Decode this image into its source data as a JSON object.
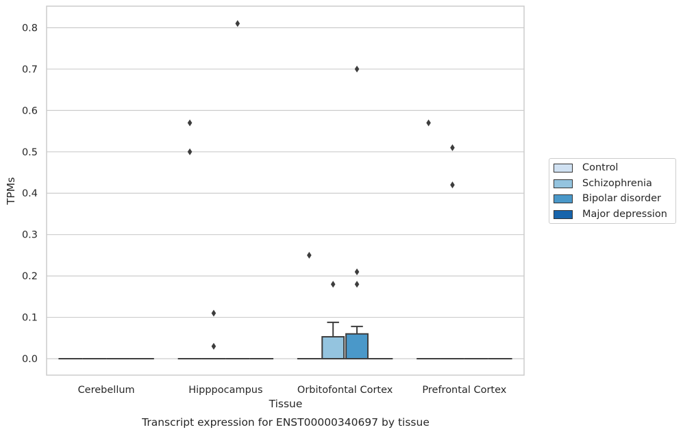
{
  "chart_data": {
    "type": "box",
    "title": "Transcript expression for ENST00000340697 by tissue",
    "xlabel": "Tissue",
    "ylabel": "TPMs",
    "ylim": [
      -0.04,
      0.853
    ],
    "yticks": [
      0.0,
      0.1,
      0.2,
      0.3,
      0.4,
      0.5,
      0.6,
      0.7,
      0.8
    ],
    "ytick_labels": [
      "0.0",
      "0.1",
      "0.2",
      "0.3",
      "0.4",
      "0.5",
      "0.6",
      "0.7",
      "0.8"
    ],
    "categories": [
      "Cerebellum",
      "Hipppocampus",
      "Orbitofontal Cortex",
      "Prefrontal Cortex"
    ],
    "grid": "horizontal",
    "legend_position": "right",
    "series": [
      {
        "name": "Control",
        "color": "#d0e1f2",
        "boxes": [
          {
            "q1": 0,
            "median": 0,
            "q3": 0,
            "whislo": 0,
            "whishi": 0,
            "fliers": []
          },
          {
            "q1": 0,
            "median": 0,
            "q3": 0,
            "whislo": 0,
            "whishi": 0,
            "fliers": [
              0.57,
              0.5
            ]
          },
          {
            "q1": 0,
            "median": 0,
            "q3": 0,
            "whislo": 0,
            "whishi": 0,
            "fliers": [
              0.25
            ]
          },
          {
            "q1": 0,
            "median": 0,
            "q3": 0,
            "whislo": 0,
            "whishi": 0,
            "fliers": [
              0.57
            ]
          }
        ]
      },
      {
        "name": "Schizophrenia",
        "color": "#94c4df",
        "boxes": [
          {
            "q1": 0,
            "median": 0,
            "q3": 0,
            "whislo": 0,
            "whishi": 0,
            "fliers": []
          },
          {
            "q1": 0,
            "median": 0,
            "q3": 0,
            "whislo": 0,
            "whishi": 0,
            "fliers": [
              0.11,
              0.03
            ]
          },
          {
            "q1": 0,
            "median": 0,
            "q3": 0.053,
            "whislo": 0,
            "whishi": 0.088,
            "fliers": [
              0.18
            ]
          },
          {
            "q1": 0,
            "median": 0,
            "q3": 0,
            "whislo": 0,
            "whishi": 0,
            "fliers": [
              0.51,
              0.42
            ]
          }
        ]
      },
      {
        "name": "Bipolar disorder",
        "color": "#4a98c9",
        "boxes": [
          {
            "q1": 0,
            "median": 0,
            "q3": 0,
            "whislo": 0,
            "whishi": 0,
            "fliers": []
          },
          {
            "q1": 0,
            "median": 0,
            "q3": 0,
            "whislo": 0,
            "whishi": 0,
            "fliers": [
              0.81
            ]
          },
          {
            "q1": 0,
            "median": 0,
            "q3": 0.06,
            "whislo": 0,
            "whishi": 0.078,
            "fliers": [
              0.7,
              0.21,
              0.18
            ]
          },
          {
            "q1": 0,
            "median": 0,
            "q3": 0,
            "whislo": 0,
            "whishi": 0,
            "fliers": []
          }
        ]
      },
      {
        "name": "Major depression",
        "color": "#1764ab",
        "boxes": [
          {
            "q1": 0,
            "median": 0,
            "q3": 0,
            "whislo": 0,
            "whishi": 0,
            "fliers": []
          },
          {
            "q1": 0,
            "median": 0,
            "q3": 0,
            "whislo": 0,
            "whishi": 0,
            "fliers": []
          },
          {
            "q1": 0,
            "median": 0,
            "q3": 0,
            "whislo": 0,
            "whishi": 0,
            "fliers": []
          },
          {
            "q1": 0,
            "median": 0,
            "q3": 0,
            "whislo": 0,
            "whishi": 0,
            "fliers": []
          }
        ]
      }
    ]
  }
}
